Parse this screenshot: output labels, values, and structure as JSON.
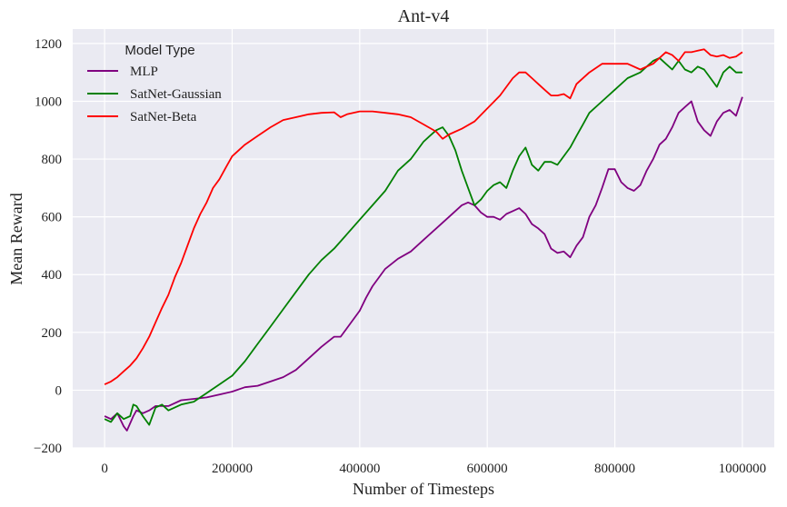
{
  "chart_data": {
    "type": "line",
    "title": "Ant-v4",
    "xlabel": "Number of Timesteps",
    "ylabel": "Mean Reward",
    "xlim": [
      -50000,
      1050000
    ],
    "ylim": [
      -200,
      1250
    ],
    "xticks": [
      0,
      200000,
      400000,
      600000,
      800000,
      1000000
    ],
    "xtick_labels": [
      "0",
      "200000",
      "400000",
      "600000",
      "800000",
      "1000000"
    ],
    "yticks": [
      -200,
      0,
      200,
      400,
      600,
      800,
      1000,
      1200
    ],
    "ytick_labels": [
      "−200",
      "0",
      "200",
      "400",
      "600",
      "800",
      "1000",
      "1200"
    ],
    "grid": true,
    "legend": {
      "title": "Model Type",
      "position": "top-left"
    },
    "series": [
      {
        "name": "MLP",
        "color": "#800080",
        "x": [
          0,
          10000,
          20000,
          30000,
          35000,
          45000,
          50000,
          60000,
          70000,
          80000,
          100000,
          120000,
          140000,
          160000,
          180000,
          200000,
          220000,
          240000,
          260000,
          280000,
          300000,
          320000,
          340000,
          360000,
          370000,
          380000,
          400000,
          410000,
          420000,
          440000,
          460000,
          480000,
          500000,
          520000,
          540000,
          560000,
          570000,
          580000,
          590000,
          600000,
          610000,
          620000,
          630000,
          640000,
          650000,
          660000,
          670000,
          680000,
          690000,
          700000,
          710000,
          720000,
          730000,
          740000,
          750000,
          760000,
          770000,
          780000,
          790000,
          800000,
          810000,
          820000,
          830000,
          840000,
          850000,
          860000,
          870000,
          880000,
          890000,
          900000,
          910000,
          920000,
          930000,
          940000,
          950000,
          960000,
          970000,
          980000,
          990000,
          1000000
        ],
        "y": [
          -90,
          -100,
          -80,
          -125,
          -140,
          -90,
          -70,
          -80,
          -70,
          -55,
          -55,
          -35,
          -30,
          -25,
          -15,
          -5,
          10,
          15,
          30,
          45,
          70,
          110,
          150,
          185,
          185,
          215,
          275,
          320,
          360,
          420,
          455,
          480,
          520,
          560,
          600,
          640,
          650,
          640,
          615,
          600,
          600,
          590,
          610,
          620,
          630,
          610,
          575,
          560,
          540,
          490,
          475,
          480,
          460,
          500,
          530,
          600,
          640,
          700,
          765,
          765,
          720,
          700,
          690,
          710,
          760,
          800,
          850,
          870,
          910,
          960,
          980,
          1000,
          930,
          900,
          880,
          930,
          960,
          970,
          950,
          1015
        ]
      },
      {
        "name": "SatNet-Gaussian",
        "color": "#008000",
        "x": [
          0,
          10000,
          20000,
          30000,
          40000,
          45000,
          50000,
          60000,
          70000,
          80000,
          90000,
          100000,
          120000,
          140000,
          160000,
          180000,
          200000,
          220000,
          240000,
          260000,
          280000,
          300000,
          320000,
          340000,
          360000,
          380000,
          400000,
          420000,
          440000,
          460000,
          480000,
          500000,
          510000,
          520000,
          530000,
          540000,
          550000,
          560000,
          570000,
          580000,
          590000,
          600000,
          610000,
          620000,
          630000,
          640000,
          650000,
          660000,
          670000,
          680000,
          690000,
          700000,
          710000,
          720000,
          730000,
          740000,
          750000,
          760000,
          780000,
          800000,
          820000,
          840000,
          850000,
          860000,
          870000,
          880000,
          890000,
          900000,
          910000,
          920000,
          930000,
          940000,
          950000,
          960000,
          970000,
          980000,
          990000,
          1000000
        ],
        "y": [
          -100,
          -110,
          -80,
          -100,
          -90,
          -50,
          -55,
          -90,
          -120,
          -60,
          -50,
          -70,
          -50,
          -40,
          -10,
          20,
          50,
          100,
          160,
          220,
          280,
          340,
          400,
          450,
          490,
          540,
          590,
          640,
          690,
          760,
          800,
          860,
          880,
          900,
          910,
          880,
          830,
          760,
          700,
          640,
          660,
          690,
          710,
          720,
          700,
          760,
          810,
          840,
          780,
          760,
          790,
          790,
          780,
          810,
          840,
          880,
          920,
          960,
          1000,
          1040,
          1080,
          1100,
          1120,
          1140,
          1150,
          1130,
          1110,
          1140,
          1110,
          1100,
          1120,
          1110,
          1080,
          1050,
          1100,
          1120,
          1100,
          1100
        ]
      },
      {
        "name": "SatNet-Beta",
        "color": "#ff0000",
        "x": [
          0,
          10000,
          20000,
          30000,
          40000,
          50000,
          60000,
          70000,
          80000,
          90000,
          100000,
          110000,
          120000,
          130000,
          140000,
          150000,
          160000,
          170000,
          180000,
          190000,
          200000,
          220000,
          240000,
          260000,
          280000,
          300000,
          320000,
          340000,
          360000,
          370000,
          380000,
          400000,
          420000,
          440000,
          460000,
          480000,
          500000,
          520000,
          530000,
          540000,
          560000,
          580000,
          600000,
          620000,
          640000,
          650000,
          660000,
          670000,
          680000,
          690000,
          700000,
          710000,
          720000,
          730000,
          740000,
          760000,
          780000,
          800000,
          820000,
          840000,
          850000,
          860000,
          870000,
          880000,
          890000,
          900000,
          910000,
          920000,
          930000,
          940000,
          950000,
          960000,
          970000,
          980000,
          990000,
          1000000
        ],
        "y": [
          20,
          30,
          45,
          65,
          85,
          110,
          145,
          185,
          235,
          285,
          330,
          390,
          440,
          500,
          560,
          610,
          650,
          700,
          730,
          770,
          810,
          850,
          880,
          910,
          935,
          945,
          955,
          960,
          962,
          945,
          955,
          965,
          965,
          960,
          955,
          945,
          920,
          895,
          870,
          885,
          905,
          930,
          975,
          1020,
          1080,
          1100,
          1100,
          1080,
          1060,
          1040,
          1020,
          1020,
          1025,
          1010,
          1060,
          1100,
          1130,
          1130,
          1130,
          1110,
          1120,
          1130,
          1150,
          1170,
          1160,
          1140,
          1170,
          1170,
          1175,
          1180,
          1160,
          1155,
          1160,
          1150,
          1155,
          1170
        ]
      }
    ]
  }
}
